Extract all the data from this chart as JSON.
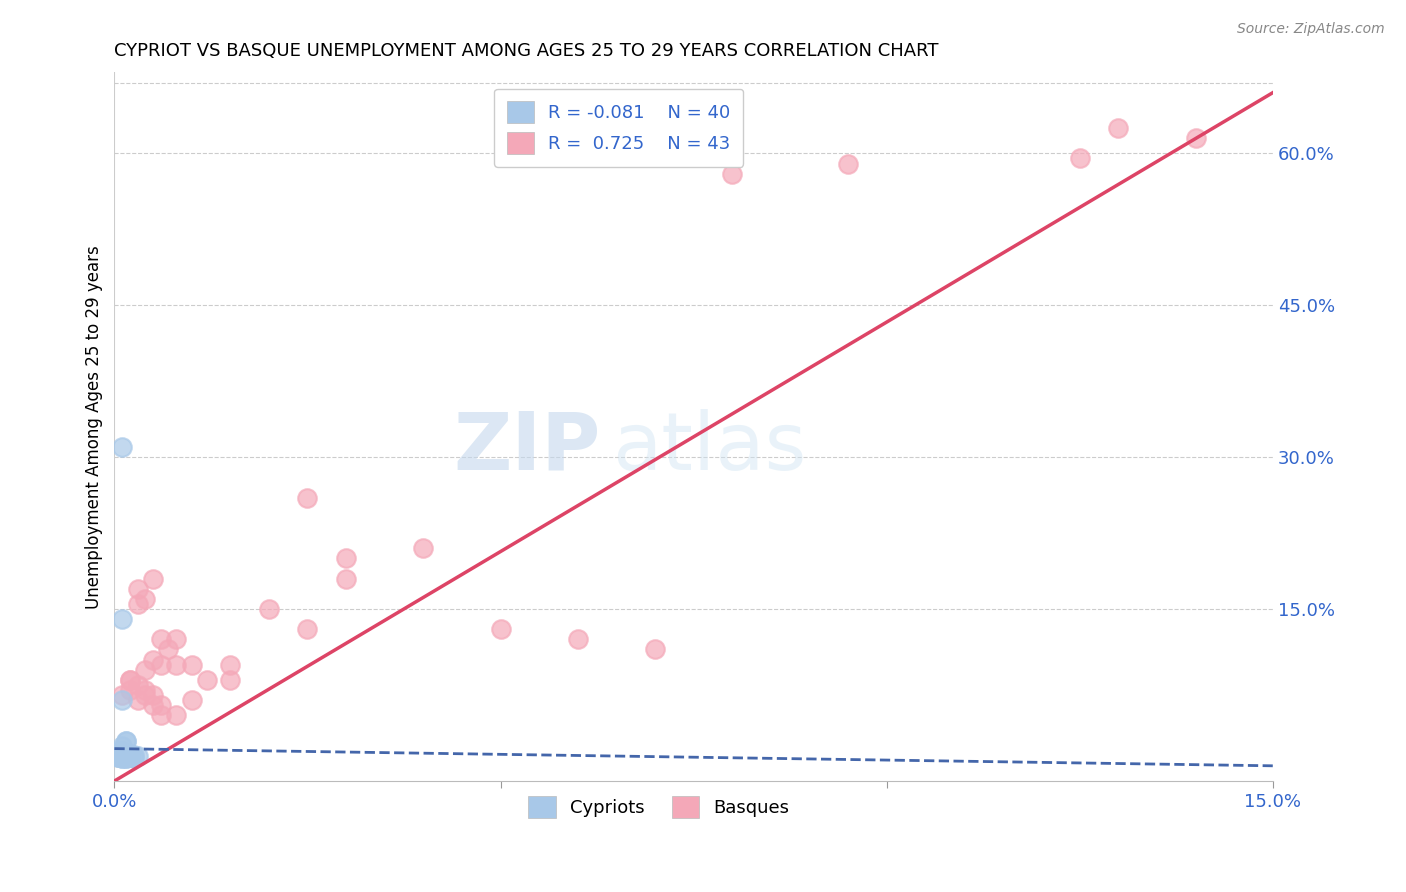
{
  "title": "CYPRIOT VS BASQUE UNEMPLOYMENT AMONG AGES 25 TO 29 YEARS CORRELATION CHART",
  "source": "Source: ZipAtlas.com",
  "ylabel": "Unemployment Among Ages 25 to 29 years",
  "xlim": [
    0.0,
    0.15
  ],
  "ylim": [
    -0.02,
    0.68
  ],
  "ytick_labels_right": [
    "15.0%",
    "30.0%",
    "45.0%",
    "60.0%"
  ],
  "ytick_positions_right": [
    0.15,
    0.3,
    0.45,
    0.6
  ],
  "legend_R_cypriot": "-0.081",
  "legend_N_cypriot": "40",
  "legend_R_basque": "0.725",
  "legend_N_basque": "43",
  "cypriot_color": "#a8c8e8",
  "basque_color": "#f4a8b8",
  "cypriot_line_color": "#4466aa",
  "basque_line_color": "#dd4466",
  "watermark_zip": "ZIP",
  "watermark_atlas": "atlas",
  "cypriot_x": [
    0.0005,
    0.001,
    0.0015,
    0.002,
    0.0025,
    0.003,
    0.001,
    0.0015,
    0.002,
    0.0005,
    0.001,
    0.0015,
    0.002,
    0.0025,
    0.001,
    0.0005,
    0.001,
    0.0015,
    0.002,
    0.001,
    0.0005,
    0.001,
    0.0015,
    0.001,
    0.0005,
    0.001,
    0.002,
    0.0015,
    0.001,
    0.0005,
    0.001,
    0.002,
    0.001,
    0.0015,
    0.001,
    0.0005,
    0.001,
    0.002,
    0.0015,
    0.001
  ],
  "cypriot_y": [
    0.005,
    0.01,
    0.008,
    0.007,
    0.006,
    0.005,
    0.004,
    0.003,
    0.006,
    0.008,
    0.005,
    0.007,
    0.004,
    0.003,
    0.006,
    0.005,
    0.004,
    0.003,
    0.005,
    0.006,
    0.004,
    0.003,
    0.005,
    0.007,
    0.004,
    0.006,
    0.005,
    0.004,
    0.003,
    0.007,
    0.005,
    0.004,
    0.06,
    0.02,
    0.015,
    0.01,
    0.14,
    0.005,
    0.02,
    0.31
  ],
  "basque_x": [
    0.001,
    0.002,
    0.003,
    0.004,
    0.005,
    0.006,
    0.007,
    0.008,
    0.01,
    0.012,
    0.015,
    0.02,
    0.025,
    0.03,
    0.002,
    0.003,
    0.004,
    0.005,
    0.006,
    0.008,
    0.01,
    0.015,
    0.003,
    0.004,
    0.005,
    0.006,
    0.008,
    0.002,
    0.003,
    0.004,
    0.005,
    0.006,
    0.08,
    0.095,
    0.125,
    0.13,
    0.14,
    0.03,
    0.04,
    0.05,
    0.06,
    0.07,
    0.025
  ],
  "basque_y": [
    0.065,
    0.07,
    0.155,
    0.09,
    0.1,
    0.095,
    0.11,
    0.12,
    0.095,
    0.08,
    0.095,
    0.15,
    0.13,
    0.18,
    0.08,
    0.075,
    0.07,
    0.065,
    0.055,
    0.045,
    0.06,
    0.08,
    0.17,
    0.16,
    0.18,
    0.12,
    0.095,
    0.08,
    0.06,
    0.065,
    0.055,
    0.045,
    0.58,
    0.59,
    0.595,
    0.625,
    0.615,
    0.2,
    0.21,
    0.13,
    0.12,
    0.11,
    0.26
  ],
  "basque_trend_x0": 0.0,
  "basque_trend_y0": -0.02,
  "basque_trend_x1": 0.15,
  "basque_trend_y1": 0.66,
  "cypriot_trend_x0": 0.0,
  "cypriot_trend_y0": 0.012,
  "cypriot_trend_x1": 0.15,
  "cypriot_trend_y1": -0.005
}
